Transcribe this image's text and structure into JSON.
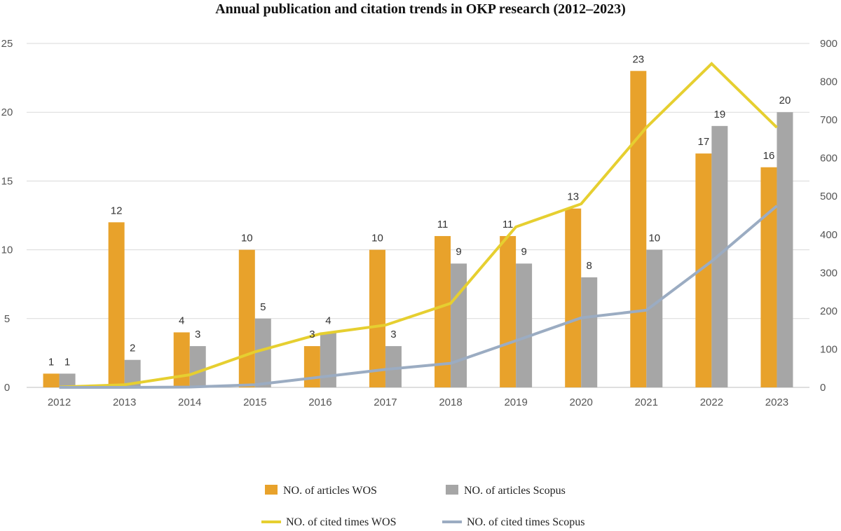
{
  "chart_data": {
    "type": "bar",
    "title": "Annual publication and citation trends in OKP research (2012–2023)",
    "xlabel": "",
    "ylabel": "",
    "categories": [
      "2012",
      "2013",
      "2014",
      "2015",
      "2016",
      "2017",
      "2018",
      "2019",
      "2020",
      "2021",
      "2022",
      "2023"
    ],
    "ylim": [
      0,
      25
    ],
    "yticks": [
      0,
      5,
      10,
      15,
      20,
      25
    ],
    "y2lim": [
      0,
      900
    ],
    "y2ticks": [
      0,
      100,
      200,
      300,
      400,
      500,
      600,
      700,
      800,
      900
    ],
    "grid": true,
    "legend_position": "bottom",
    "series": [
      {
        "name": "NO. of  articles WOS",
        "kind": "bar",
        "axis": "left",
        "color": "#E8A22B",
        "values": [
          1,
          12,
          4,
          10,
          3,
          10,
          11,
          11,
          13,
          23,
          17,
          16
        ]
      },
      {
        "name": "NO. of articles Scopus",
        "kind": "bar",
        "axis": "left",
        "color": "#A6A6A6",
        "values": [
          1,
          2,
          3,
          5,
          4,
          3,
          9,
          9,
          8,
          10,
          19,
          20
        ]
      },
      {
        "name": "NO. of cited times WOS",
        "kind": "line",
        "axis": "right",
        "color": "#E6CF30",
        "values": [
          1,
          7,
          33,
          93,
          140,
          163,
          220,
          420,
          480,
          680,
          847,
          680
        ]
      },
      {
        "name": "NO. of cited times Scopus",
        "kind": "line",
        "axis": "right",
        "color": "#9BACC2",
        "values": [
          0,
          0,
          1,
          7,
          27,
          47,
          63,
          122,
          182,
          202,
          330,
          475
        ]
      }
    ]
  }
}
